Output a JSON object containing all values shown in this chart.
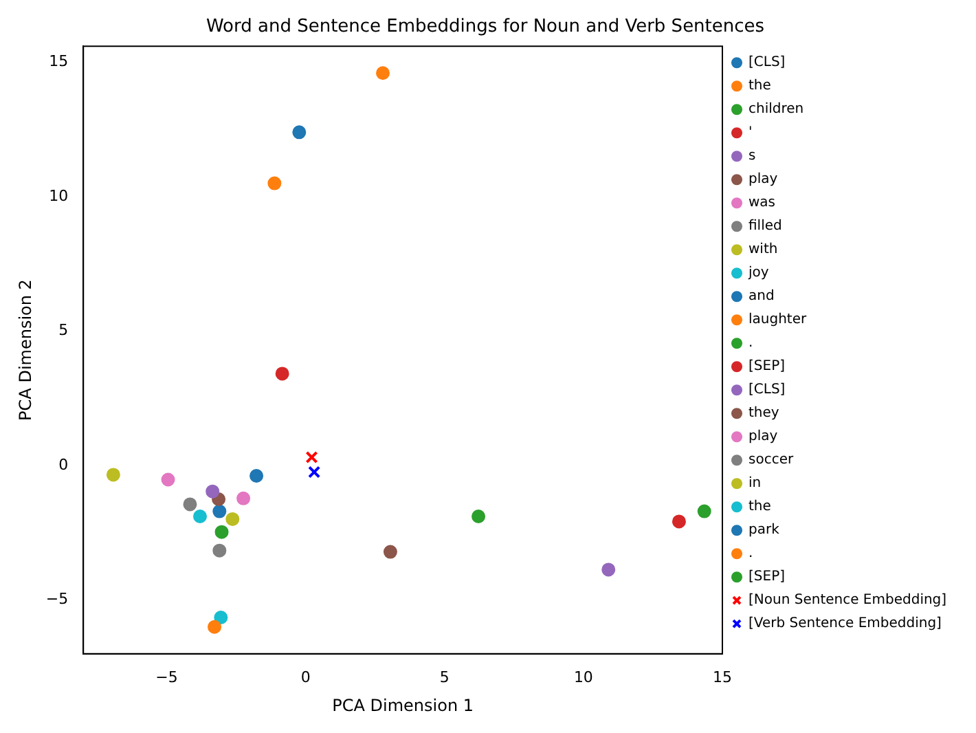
{
  "chart_data": {
    "type": "scatter",
    "title": "Word and Sentence Embeddings for Noun and Verb Sentences",
    "xlabel": "PCA Dimension 1",
    "ylabel": "PCA Dimension 2",
    "xlim": [
      -8,
      15
    ],
    "xticks": [
      {
        "value": -5,
        "label": "−5"
      },
      0,
      5,
      10,
      15
    ],
    "ylim": [
      -7,
      15.6
    ],
    "yticks": [
      {
        "value": -5,
        "label": "−5"
      },
      0,
      5,
      10,
      15
    ],
    "grid": false,
    "legend": "right",
    "marker": "circle",
    "series": [
      {
        "name": "[CLS]",
        "color": "#1f77b4",
        "x": [
          -0.23
        ],
        "values": [
          12.4
        ]
      },
      {
        "name": "the",
        "color": "#ff7f0e",
        "x": [
          -1.12
        ],
        "values": [
          10.5
        ]
      },
      {
        "name": "children",
        "color": "#2ca02c",
        "x": [
          -3.02
        ],
        "values": [
          -2.47
        ]
      },
      {
        "name": "'",
        "color": "#d62728",
        "x": [
          -0.84
        ],
        "values": [
          3.42
        ]
      },
      {
        "name": "s",
        "color": "#9467bd",
        "x": [
          -3.35
        ],
        "values": [
          -0.96
        ]
      },
      {
        "name": "play",
        "color": "#8c564b",
        "x": [
          -3.13
        ],
        "values": [
          -1.25
        ]
      },
      {
        "name": "was",
        "color": "#e377c2",
        "x": [
          -4.95
        ],
        "values": [
          -0.52
        ]
      },
      {
        "name": "filled",
        "color": "#7f7f7f",
        "x": [
          -4.16
        ],
        "values": [
          -1.44
        ]
      },
      {
        "name": "with",
        "color": "#bcbd22",
        "x": [
          -6.92
        ],
        "values": [
          -0.34
        ]
      },
      {
        "name": "joy",
        "color": "#17becf",
        "x": [
          -3.8
        ],
        "values": [
          -1.89
        ]
      },
      {
        "name": "and",
        "color": "#1f77b4",
        "x": [
          -3.1
        ],
        "values": [
          -1.7
        ]
      },
      {
        "name": "laughter",
        "color": "#ff7f0e",
        "x": [
          -3.28
        ],
        "values": [
          -6.0
        ]
      },
      {
        "name": ".",
        "color": "#2ca02c",
        "x": [
          6.22
        ],
        "values": [
          -1.89
        ]
      },
      {
        "name": "[SEP]",
        "color": "#d62728",
        "x": [
          13.44
        ],
        "values": [
          -2.08
        ]
      },
      {
        "name": "[CLS]",
        "color": "#9467bd",
        "x": [
          10.9
        ],
        "values": [
          -3.87
        ]
      },
      {
        "name": "they",
        "color": "#8c564b",
        "x": [
          3.05
        ],
        "values": [
          -3.21
        ]
      },
      {
        "name": "play",
        "color": "#e377c2",
        "x": [
          -2.24
        ],
        "values": [
          -1.22
        ]
      },
      {
        "name": "soccer",
        "color": "#7f7f7f",
        "x": [
          -3.1
        ],
        "values": [
          -3.16
        ]
      },
      {
        "name": "in",
        "color": "#bcbd22",
        "x": [
          -2.63
        ],
        "values": [
          -1.99
        ]
      },
      {
        "name": "the",
        "color": "#17becf",
        "x": [
          -3.05
        ],
        "values": [
          -5.65
        ]
      },
      {
        "name": "park",
        "color": "#1f77b4",
        "x": [
          -1.77
        ],
        "values": [
          -0.38
        ]
      },
      {
        "name": ".",
        "color": "#ff7f0e",
        "x": [
          2.78
        ],
        "values": [
          14.6
        ]
      },
      {
        "name": "[SEP]",
        "color": "#2ca02c",
        "x": [
          14.35
        ],
        "values": [
          -1.7
        ]
      },
      {
        "name": "[Noun Sentence Embedding]",
        "color": "#ff0000",
        "marker": "cross",
        "x": [
          0.22
        ],
        "values": [
          0.31
        ]
      },
      {
        "name": "[Verb Sentence Embedding]",
        "color": "#0000ff",
        "marker": "cross",
        "x": [
          0.31
        ],
        "values": [
          -0.24
        ]
      }
    ]
  }
}
